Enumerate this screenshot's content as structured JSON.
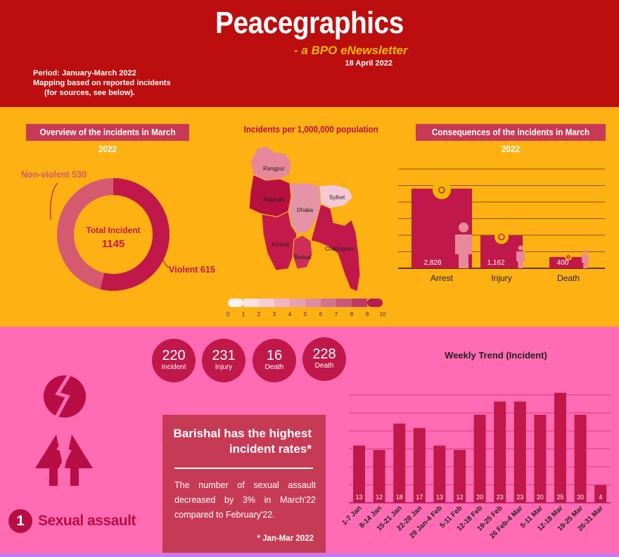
{
  "header": {
    "title": "Peacegraphics",
    "subtitle": "- a BPO eNewsletter",
    "date": "18 April 2022",
    "period_lines": [
      "Period: January-March 2022",
      "Mapping based on reported incidents",
      "(for sources, see below)."
    ]
  },
  "overview": {
    "title": "Overview of the incidents in March 2022",
    "center_label": "Total Incident",
    "center_value": "1145",
    "non_violent_label": "Non-violent 530",
    "violent_label": "Violent 615",
    "colors": {
      "violent": "#c0184a",
      "non_violent": "#d55a70"
    }
  },
  "map": {
    "title": "Incidents per 1,000,000 population",
    "divisions": [
      "Rangpur",
      "Rajshahi",
      "Dhaka",
      "Sylhet",
      "Khulna",
      "Barisal",
      "Chattogram"
    ],
    "scale_ticks": [
      "0",
      "1",
      "2",
      "3",
      "4",
      "5",
      "6",
      "7",
      "8",
      "9",
      "10"
    ]
  },
  "consequences": {
    "title": "Consequences of the incidents in March 2022",
    "bars": [
      {
        "category": "Arrest",
        "value": "2,828",
        "amount": 2828
      },
      {
        "category": "Injury",
        "value": "1,162",
        "amount": 1162
      },
      {
        "category": "Death",
        "value": "400",
        "amount": 400
      }
    ]
  },
  "stats": [
    {
      "value": "220",
      "label": "Incident"
    },
    {
      "value": "231",
      "label": "Injury"
    },
    {
      "value": "16",
      "label": "Death"
    },
    {
      "value": "228",
      "label": "Death"
    }
  ],
  "callout": {
    "headline": "Barishal has the highest incident rates*",
    "body": "The number of sexual assault decreased by 3% in March'22 compared to February'22.",
    "footnote": "* Jan-Mar 2022"
  },
  "section_badge": {
    "number": "1",
    "label": "Sexual assault"
  },
  "chart_data": [
    {
      "type": "pie",
      "title": "Overview of the incidents in March 2022",
      "categories": [
        "Violent",
        "Non-violent"
      ],
      "values": [
        615,
        530
      ]
    },
    {
      "type": "bar",
      "title": "Consequences of the incidents in March 2022",
      "categories": [
        "Arrest",
        "Injury",
        "Death"
      ],
      "values": [
        2828,
        1162,
        400
      ]
    },
    {
      "type": "bar",
      "title": "Weekly Trend (Incident)",
      "categories": [
        "1-7 Jan",
        "8-14 Jan",
        "15-21 Jan",
        "22-28 Jan",
        "29 Jan-4 Feb",
        "5-11 Feb",
        "12-18 Feb",
        "19-25 Feb",
        "26 Feb-4 Mar",
        "5-11 Mar",
        "12-18 Mar",
        "19-25 Mar",
        "26-31 Mar"
      ],
      "values": [
        13,
        12,
        18,
        17,
        13,
        12,
        20,
        23,
        23,
        20,
        25,
        20,
        4
      ]
    }
  ]
}
